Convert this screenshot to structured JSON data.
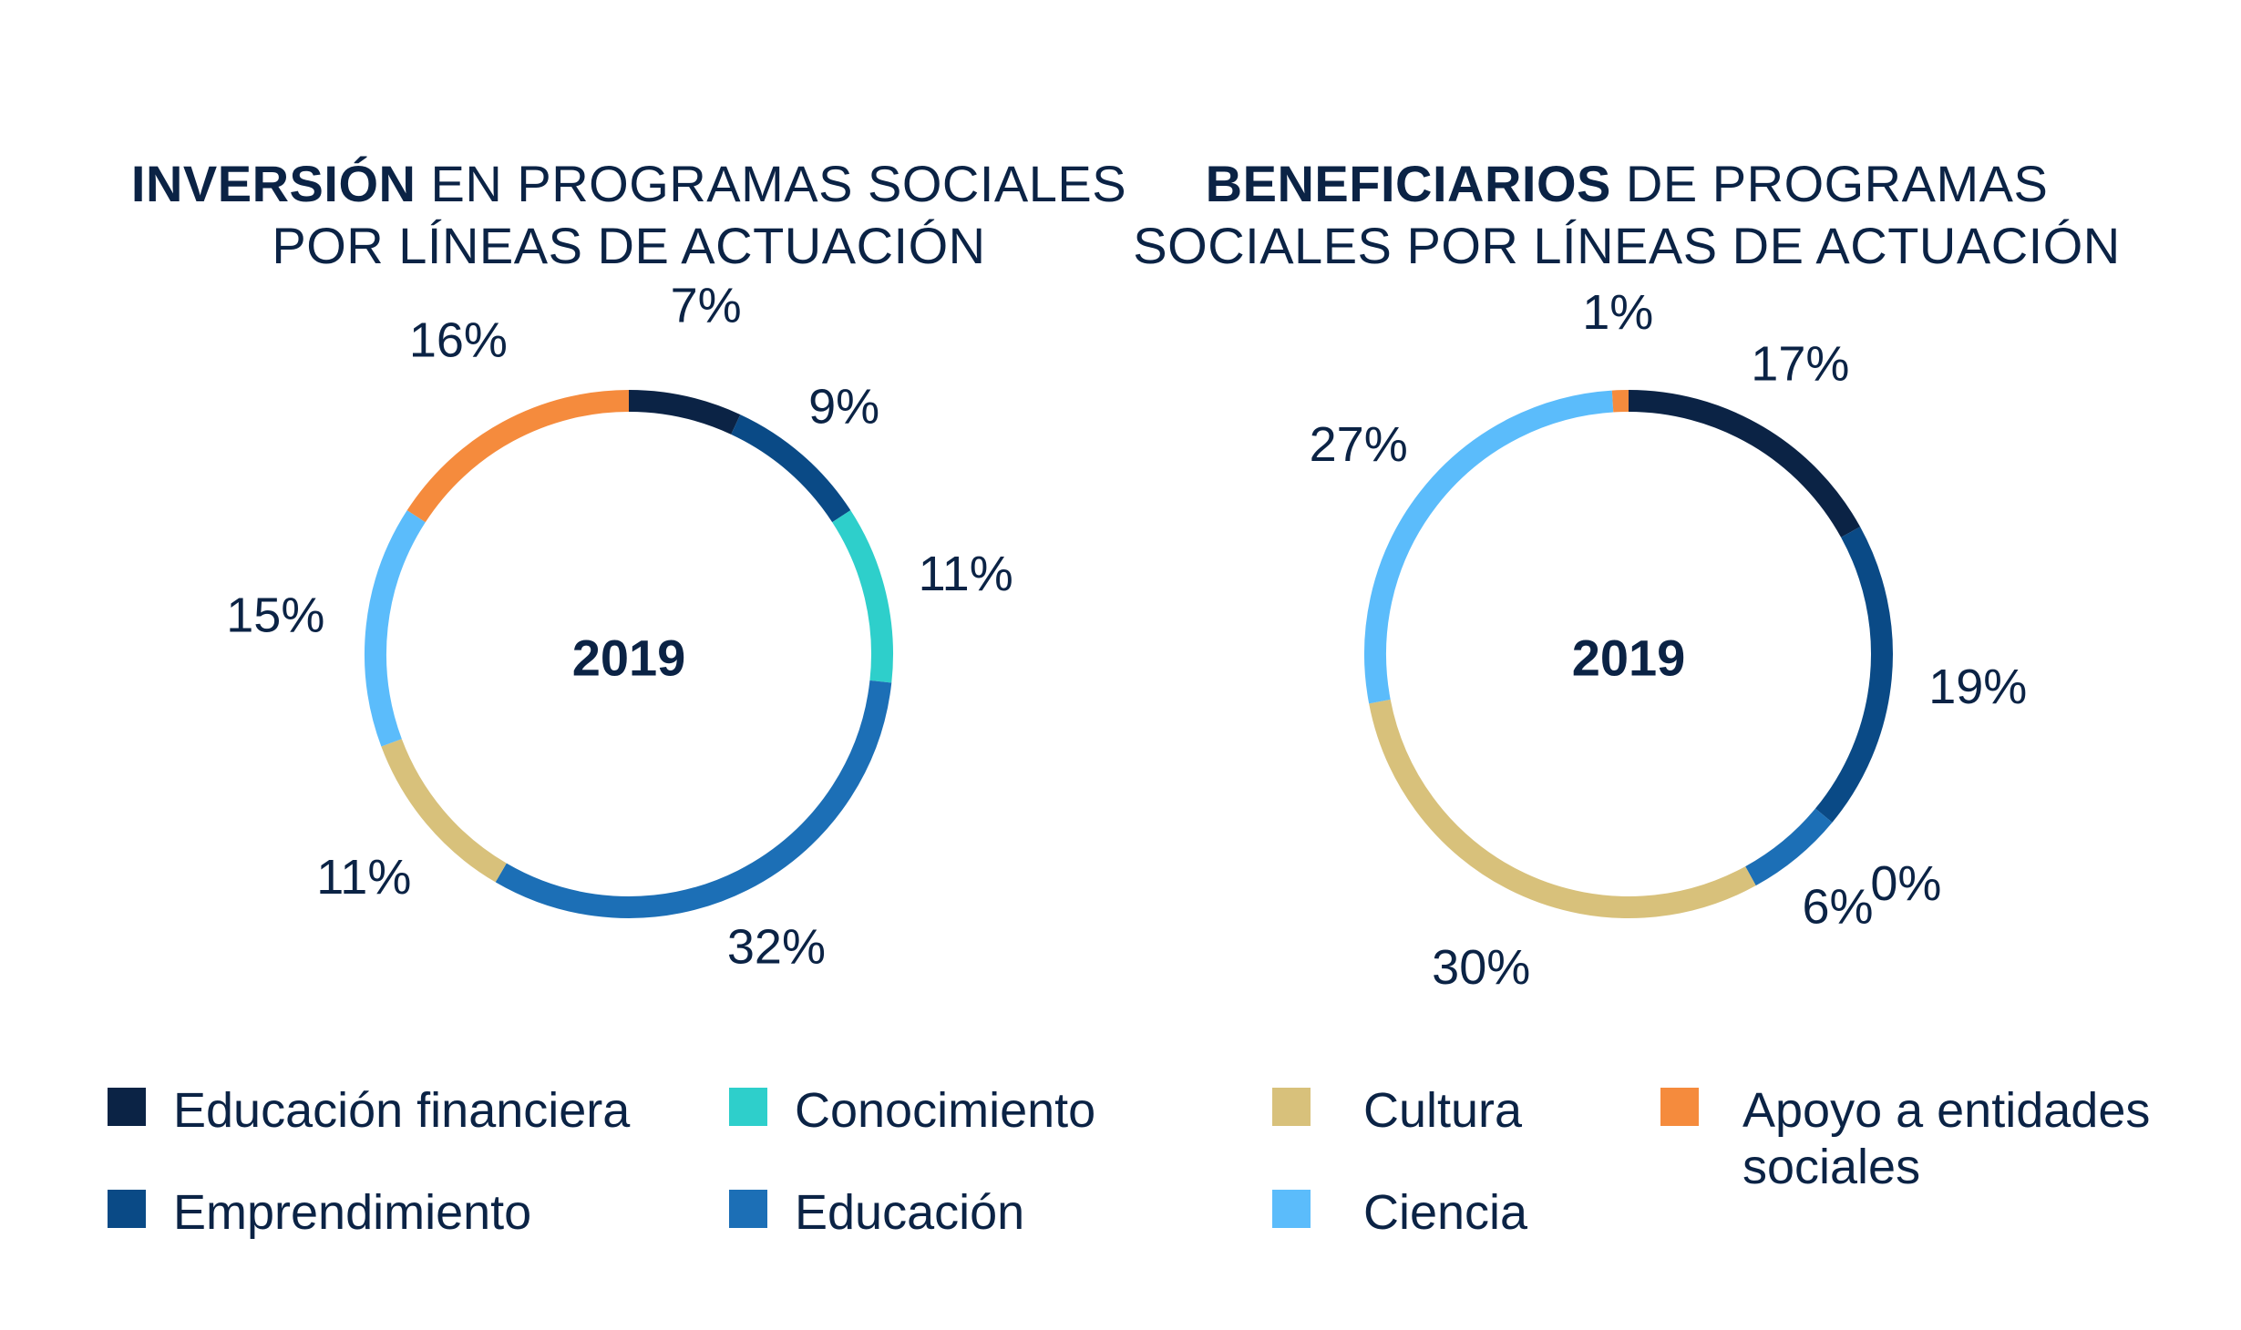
{
  "colors": {
    "text": "#0b2345",
    "educacion_financiera": "#0b2345",
    "emprendimiento": "#0a4a86",
    "conocimiento": "#2ecfcb",
    "educacion": "#1c6fb6",
    "cultura": "#d8c17b",
    "ciencia": "#5bbcfb",
    "apoyo": "#f58b3d"
  },
  "legend": [
    {
      "key": "educacion_financiera",
      "label": "Educación financiera"
    },
    {
      "key": "emprendimiento",
      "label": "Emprendimiento"
    },
    {
      "key": "conocimiento",
      "label": "Conocimiento"
    },
    {
      "key": "educacion",
      "label": "Educación"
    },
    {
      "key": "cultura",
      "label": "Cultura"
    },
    {
      "key": "ciencia",
      "label": "Ciencia"
    },
    {
      "key": "apoyo",
      "label": "Apoyo a entidades sociales"
    }
  ],
  "chart_data": [
    {
      "type": "pie",
      "title_bold": "INVERSIÓN",
      "title_rest": " EN PROGRAMAS SOCIALES POR LÍNEAS DE ACTUACIÓN",
      "center_label": "2019",
      "slices": [
        {
          "key": "educacion_financiera",
          "value": 7,
          "label": "7%"
        },
        {
          "key": "emprendimiento",
          "value": 9,
          "label": "9%"
        },
        {
          "key": "conocimiento",
          "value": 11,
          "label": "11%"
        },
        {
          "key": "educacion",
          "value": 32,
          "label": "32%"
        },
        {
          "key": "cultura",
          "value": 11,
          "label": "11%"
        },
        {
          "key": "ciencia",
          "value": 15,
          "label": "15%"
        },
        {
          "key": "apoyo",
          "value": 16,
          "label": "16%"
        }
      ]
    },
    {
      "type": "pie",
      "title_bold": "BENEFICIARIOS",
      "title_rest": " DE PROGRAMAS SOCIALES POR LÍNEAS DE ACTUACIÓN",
      "center_label": "2019",
      "slices": [
        {
          "key": "educacion_financiera",
          "value": 17,
          "label": "17%"
        },
        {
          "key": "emprendimiento",
          "value": 19,
          "label": "19%"
        },
        {
          "key": "conocimiento",
          "value": 0,
          "label": "0%"
        },
        {
          "key": "educacion",
          "value": 6,
          "label": "6%"
        },
        {
          "key": "cultura",
          "value": 30,
          "label": "30%"
        },
        {
          "key": "ciencia",
          "value": 27,
          "label": "27%"
        },
        {
          "key": "apoyo",
          "value": 1,
          "label": "1%"
        }
      ]
    }
  ]
}
